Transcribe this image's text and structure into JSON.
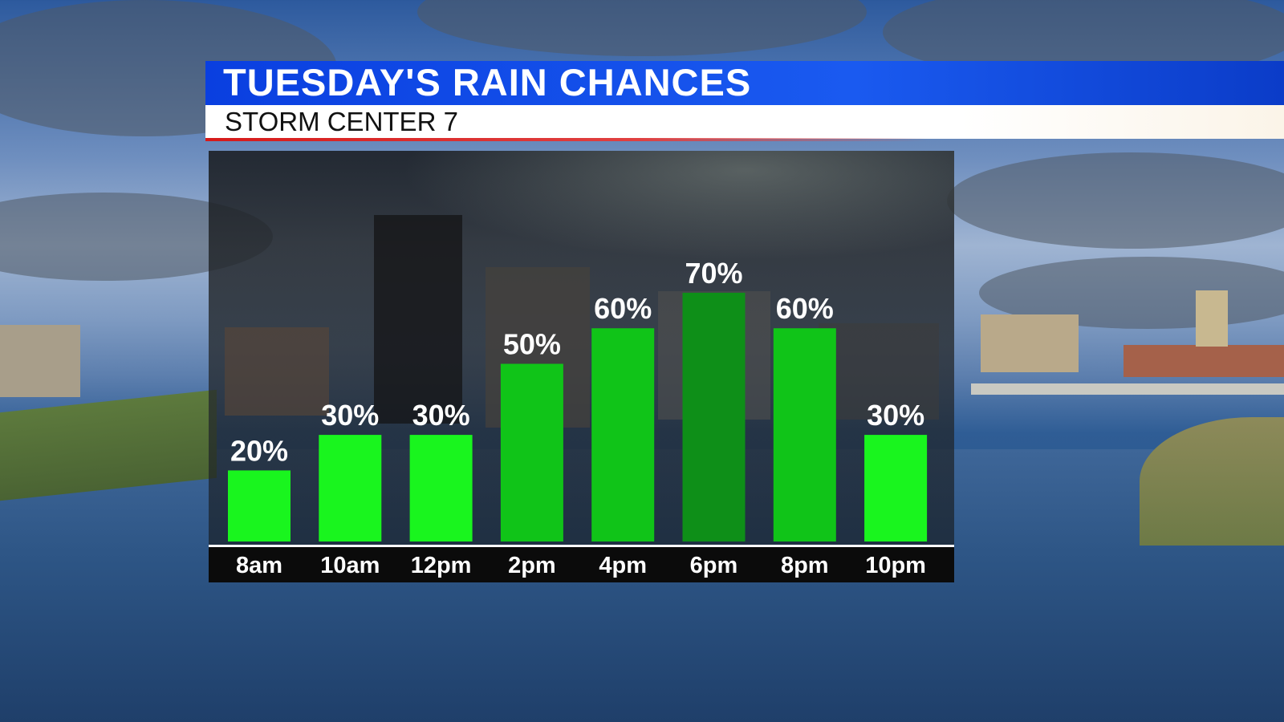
{
  "header": {
    "title": "TUESDAY'S RAIN CHANCES",
    "subtitle": "STORM CENTER 7"
  },
  "colors": {
    "title_bar": "#1a5af0",
    "accent_line": "#d61a1a",
    "bar_light": "#19f51e",
    "bar_mid": "#10c418",
    "bar_dark": "#0e8f18"
  },
  "chart_data": {
    "type": "bar",
    "title": "TUESDAY'S RAIN CHANCES",
    "categories": [
      "8am",
      "10am",
      "12pm",
      "2pm",
      "4pm",
      "6pm",
      "8pm",
      "10pm"
    ],
    "values": [
      20,
      30,
      30,
      50,
      60,
      70,
      60,
      30
    ],
    "labels": [
      "20%",
      "30%",
      "30%",
      "50%",
      "60%",
      "70%",
      "60%",
      "30%"
    ],
    "unit": "%",
    "ylim": [
      0,
      100
    ],
    "grid": false,
    "legend": "none"
  }
}
